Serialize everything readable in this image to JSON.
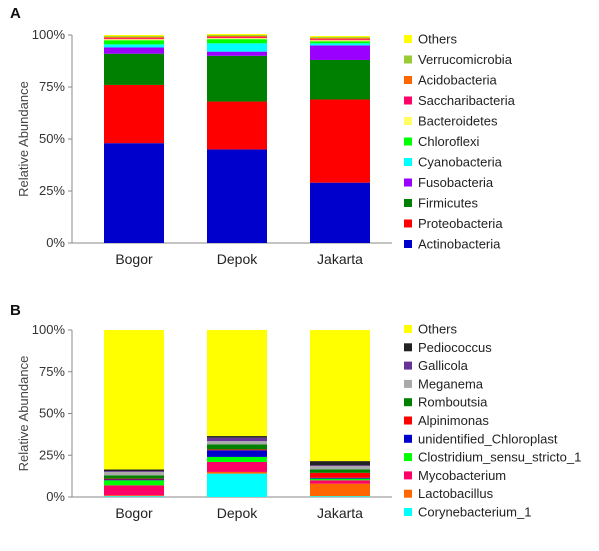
{
  "chart_data": [
    {
      "type": "bar",
      "stacked": true,
      "panel_label": "A",
      "ylabel": "Relative Abundance",
      "ylim": [
        0,
        100
      ],
      "yticks": [
        "0%",
        "25%",
        "50%",
        "75%",
        "100%"
      ],
      "categories": [
        "Bogor",
        "Depok",
        "Jakarta"
      ],
      "legend_position": "right",
      "series": [
        {
          "name": "Actinobacteria",
          "color": "#0000cc",
          "values": [
            48,
            45,
            29
          ]
        },
        {
          "name": "Proteobacteria",
          "color": "#ff0000",
          "values": [
            28,
            23,
            40
          ]
        },
        {
          "name": "Firmicutes",
          "color": "#008000",
          "values": [
            15,
            22,
            19
          ]
        },
        {
          "name": "Fusobacteria",
          "color": "#9900ff",
          "values": [
            3,
            2,
            7
          ]
        },
        {
          "name": "Cyanobacteria",
          "color": "#00ffff",
          "values": [
            1.5,
            4,
            1
          ]
        },
        {
          "name": "Chloroflexi",
          "color": "#00ff00",
          "values": [
            2,
            2,
            1
          ]
        },
        {
          "name": "Bacteroidetes",
          "color": "#ffff66",
          "values": [
            0.5,
            0.5,
            0.5
          ]
        },
        {
          "name": "Saccharibacteria",
          "color": "#ff0066",
          "values": [
            0.5,
            0.5,
            0.5
          ]
        },
        {
          "name": "Acidobacteria",
          "color": "#ff6600",
          "values": [
            0.5,
            0.5,
            0.5
          ]
        },
        {
          "name": "Verrucomicrobia",
          "color": "#99cc33",
          "values": [
            0.5,
            0.5,
            0.5
          ]
        },
        {
          "name": "Others",
          "color": "#ffff00",
          "values": [
            0.5,
            0.5,
            0.5
          ]
        }
      ]
    },
    {
      "type": "bar",
      "stacked": true,
      "panel_label": "B",
      "ylabel": "Relative Abundance",
      "ylim": [
        0,
        100
      ],
      "yticks": [
        "0%",
        "25%",
        "50%",
        "75%",
        "100%"
      ],
      "categories": [
        "Bogor",
        "Depok",
        "Jakarta"
      ],
      "legend_position": "right",
      "series": [
        {
          "name": "Corynebacterium_1",
          "color": "#00ffff",
          "values": [
            0.5,
            14,
            0.5
          ]
        },
        {
          "name": "Lactobacillus",
          "color": "#ff6600",
          "values": [
            0.5,
            1,
            7.5
          ]
        },
        {
          "name": "Mycobacterium",
          "color": "#ff0066",
          "values": [
            6,
            6,
            2
          ]
        },
        {
          "name": "Clostridium_sensu_stricto_1",
          "color": "#00ff00",
          "values": [
            3,
            3,
            1
          ]
        },
        {
          "name": "unidentified_Chloroplast",
          "color": "#0000cc",
          "values": [
            0.5,
            4,
            0.5
          ]
        },
        {
          "name": "Alpinimonas",
          "color": "#ff0000",
          "values": [
            0.5,
            0.5,
            3
          ]
        },
        {
          "name": "Romboutsia",
          "color": "#008000",
          "values": [
            2,
            3,
            2
          ]
        },
        {
          "name": "Meganema",
          "color": "#aaaaaa",
          "values": [
            2,
            2,
            2
          ]
        },
        {
          "name": "Gallicola",
          "color": "#663399",
          "values": [
            0.5,
            2,
            0.5
          ]
        },
        {
          "name": "Pediococcus",
          "color": "#222222",
          "values": [
            1,
            1,
            2.5
          ]
        },
        {
          "name": "Others",
          "color": "#ffff00",
          "values": [
            83.5,
            63.5,
            78.5
          ]
        }
      ]
    }
  ]
}
